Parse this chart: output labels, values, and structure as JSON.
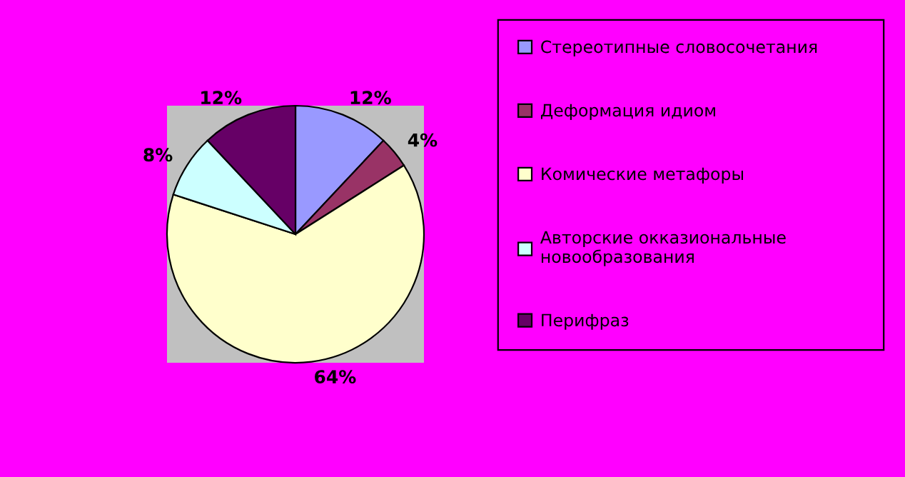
{
  "chart_data": {
    "type": "pie",
    "categories": [
      "Стереотипные словосочетания",
      "Деформация идиом",
      "Комические метафоры",
      "Авторские окказиональные\nновообразования",
      "Перифраз"
    ],
    "values": [
      12,
      4,
      64,
      8,
      12
    ],
    "colors": [
      "#9999ff",
      "#993366",
      "#ffffcc",
      "#ccffff",
      "#660066"
    ],
    "value_labels": [
      "12%",
      "4%",
      "64%",
      "8%",
      "12%"
    ],
    "legend": "right"
  }
}
